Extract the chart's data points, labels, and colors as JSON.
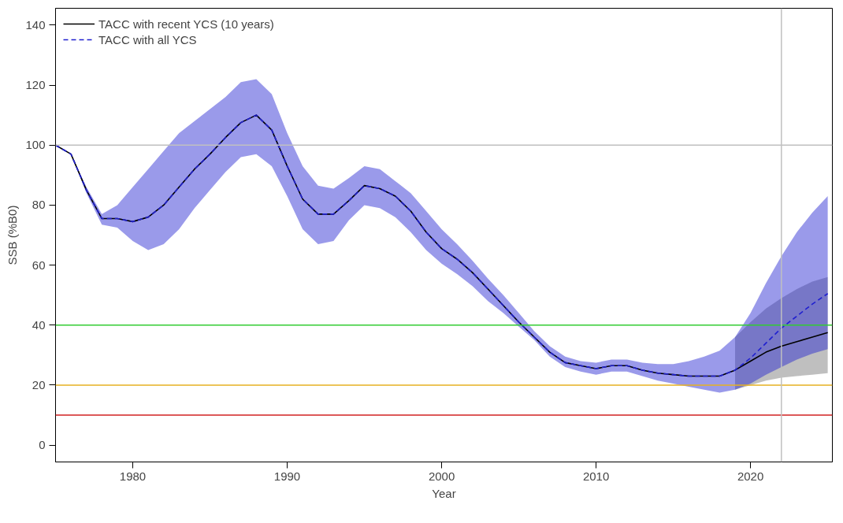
{
  "chart_data": {
    "type": "line",
    "xlabel": "Year",
    "ylabel": "SSB (%B0)",
    "xlim": [
      1975,
      2025.3
    ],
    "ylim": [
      -5.6,
      145.6
    ],
    "xticks": [
      1980,
      1990,
      2000,
      2010,
      2020
    ],
    "yticks": [
      0,
      20,
      40,
      60,
      80,
      100,
      120,
      140
    ],
    "grid": false,
    "legend": "top left",
    "x": [
      1975,
      1976,
      1977,
      1978,
      1979,
      1980,
      1981,
      1982,
      1983,
      1984,
      1985,
      1986,
      1987,
      1988,
      1989,
      1990,
      1991,
      1992,
      1993,
      1994,
      1995,
      1996,
      1997,
      1998,
      1999,
      2000,
      2001,
      2002,
      2003,
      2004,
      2005,
      2006,
      2007,
      2008,
      2009,
      2010,
      2011,
      2012,
      2013,
      2014,
      2015,
      2016,
      2017,
      2018,
      2019,
      2020,
      2021,
      2022,
      2023,
      2024,
      2025
    ],
    "series": [
      {
        "name": "TACC with recent YCS (10 years)",
        "color": "#000000",
        "line_style": "solid",
        "values": [
          100,
          97,
          85,
          75.5,
          75.5,
          74.5,
          76,
          80,
          86,
          92,
          97,
          102.5,
          107.5,
          110,
          105,
          93,
          82,
          77,
          77,
          81.5,
          86.5,
          85.5,
          83,
          78,
          71,
          65.5,
          62,
          57.5,
          52,
          46.5,
          41,
          36,
          31,
          27.5,
          26.5,
          25.5,
          26.5,
          26.5,
          25,
          24,
          23.5,
          23,
          23,
          23,
          25,
          28,
          31,
          33,
          34.5,
          36,
          37.5
        ],
        "lower": [
          null,
          null,
          null,
          null,
          null,
          null,
          null,
          null,
          null,
          null,
          null,
          null,
          null,
          null,
          null,
          null,
          null,
          null,
          null,
          null,
          null,
          null,
          null,
          null,
          null,
          null,
          null,
          null,
          null,
          null,
          null,
          null,
          null,
          null,
          null,
          null,
          null,
          null,
          null,
          null,
          null,
          null,
          null,
          null,
          18.5,
          20,
          21.5,
          22.5,
          23,
          23.5,
          24
        ],
        "upper": [
          null,
          null,
          null,
          null,
          null,
          null,
          null,
          null,
          null,
          null,
          null,
          null,
          null,
          null,
          null,
          null,
          null,
          null,
          null,
          null,
          null,
          null,
          null,
          null,
          null,
          null,
          null,
          null,
          null,
          null,
          null,
          null,
          null,
          null,
          null,
          null,
          null,
          null,
          null,
          null,
          null,
          null,
          null,
          null,
          36,
          41,
          45.5,
          49,
          52,
          54.5,
          56
        ]
      },
      {
        "name": "TACC with all YCS",
        "color": "#2020d0",
        "line_style": "dashed",
        "values": [
          100,
          97,
          85,
          75.5,
          75.5,
          74.5,
          76,
          80,
          86,
          92,
          97,
          102.5,
          107.5,
          110,
          105,
          93,
          82,
          77,
          77,
          81.5,
          86.5,
          85.5,
          83,
          78,
          71,
          65.5,
          62,
          57.5,
          52,
          46.5,
          41,
          36,
          31,
          27.5,
          26.5,
          25.5,
          26.5,
          26.5,
          25,
          24,
          23.5,
          23,
          23,
          23,
          25,
          29,
          34,
          39,
          43,
          47,
          50.5
        ],
        "lower": [
          100,
          97,
          84,
          73.5,
          72.5,
          68,
          65,
          67,
          72,
          79,
          85,
          91,
          96,
          97,
          93,
          83,
          72,
          67,
          68,
          75,
          80,
          79,
          76,
          71,
          65,
          60.5,
          57,
          53,
          48,
          44,
          39.5,
          35,
          29.5,
          26,
          24.5,
          23.5,
          24.5,
          24.5,
          23,
          21.5,
          20.5,
          19.5,
          18.5,
          17.5,
          18.5,
          20.5,
          23.5,
          26,
          28.5,
          30.5,
          32
        ],
        "upper": [
          100,
          97,
          86,
          77,
          80,
          86,
          92,
          98,
          104,
          108,
          112,
          116,
          121,
          122,
          117,
          104,
          93,
          86.5,
          85.5,
          89,
          93,
          92,
          88,
          84,
          78,
          72,
          67,
          61.5,
          55.5,
          50,
          44,
          38,
          33,
          29.5,
          28,
          27.5,
          28.5,
          28.5,
          27.5,
          27,
          27,
          28,
          29.5,
          31.5,
          36,
          44,
          54,
          63,
          71,
          77.5,
          83
        ]
      }
    ],
    "ref_lines": [
      {
        "axis": "y",
        "value": 100,
        "color": "#c0c0c0"
      },
      {
        "axis": "y",
        "value": 40,
        "color": "#33cc33"
      },
      {
        "axis": "y",
        "value": 20,
        "color": "#e6b020"
      },
      {
        "axis": "y",
        "value": 10,
        "color": "#d02020"
      },
      {
        "axis": "x",
        "value": 2022,
        "color": "#c0c0c0"
      }
    ]
  }
}
